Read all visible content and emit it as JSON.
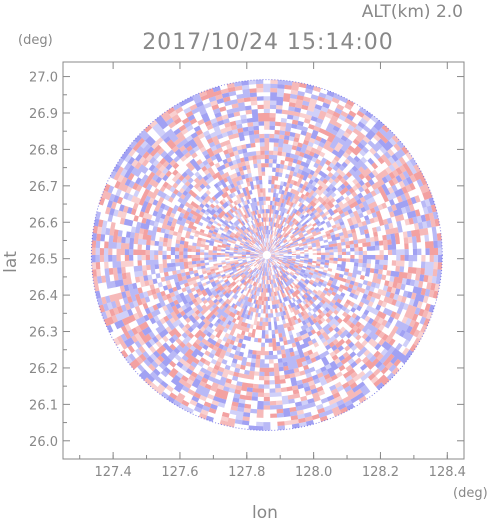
{
  "header": {
    "altitude_label": "ALT(km) 2.0",
    "timestamp": "2017/10/24 15:14:00"
  },
  "chart_data": {
    "type": "heatmap",
    "title": "2017/10/24 15:14:00",
    "subtitle": "ALT(km) 2.0",
    "xlabel": "lon",
    "ylabel": "lat",
    "x_unit": "(deg)",
    "y_unit": "(deg)",
    "xlim": [
      127.25,
      128.45
    ],
    "ylim": [
      25.95,
      27.04
    ],
    "x_ticks": [
      "127.4",
      "127.6",
      "127.8",
      "128.0",
      "128.2",
      "128.4"
    ],
    "x_tick_values": [
      127.4,
      127.6,
      127.8,
      128.0,
      128.2,
      128.4
    ],
    "y_ticks": [
      "26.0",
      "26.1",
      "26.2",
      "26.3",
      "26.4",
      "26.5",
      "26.6",
      "26.7",
      "26.8",
      "26.9",
      "27.0"
    ],
    "y_tick_values": [
      26.0,
      26.1,
      26.2,
      26.3,
      26.4,
      26.5,
      26.6,
      26.7,
      26.8,
      26.9,
      27.0
    ],
    "center": {
      "lon": 127.86,
      "lat": 26.51
    },
    "radius_deg": 0.525,
    "grid": false,
    "colors": {
      "positive": "#f08a8a",
      "negative": "#8a8af0",
      "edge": "#5050e0",
      "axis": "#888888",
      "text": "#888888"
    }
  }
}
